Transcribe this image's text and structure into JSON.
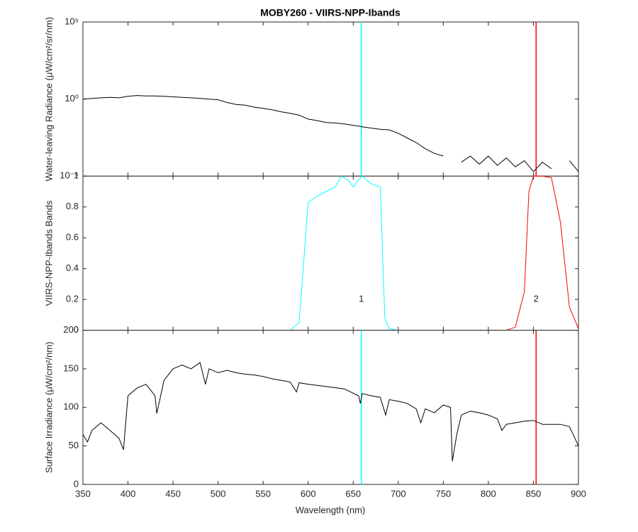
{
  "chart_data": [
    {
      "type": "line",
      "title": "MOBY260 - VIIRS-NPP-Ibands",
      "ylabel": "Water-leaving Radiance (μW/cm²/sr/nm)",
      "log_y": true,
      "xlim": [
        350,
        900
      ],
      "ylim": [
        1e-05,
        100000
      ],
      "yticks": [
        {
          "value": 1e-05,
          "label": "10⁻⁵"
        },
        {
          "value": 1,
          "label": "10⁰"
        },
        {
          "value": 100000,
          "label": "10⁵"
        }
      ],
      "series": [
        {
          "color": "#000000",
          "x": [
            350,
            360,
            370,
            380,
            390,
            400,
            410,
            420,
            430,
            440,
            450,
            460,
            470,
            480,
            490,
            500,
            510,
            520,
            530,
            540,
            550,
            560,
            570,
            580,
            590,
            600,
            610,
            620,
            630,
            640,
            650,
            660,
            670,
            680,
            690,
            700,
            710,
            720,
            730,
            740,
            750,
            760,
            770,
            780,
            790,
            800,
            810,
            820,
            830,
            840,
            850,
            860,
            870,
            880,
            890,
            900
          ],
          "values": [
            1.0,
            1.1,
            1.2,
            1.3,
            1.2,
            1.5,
            1.7,
            1.6,
            1.6,
            1.5,
            1.4,
            1.3,
            1.2,
            1.1,
            1.0,
            0.9,
            0.6,
            0.45,
            0.4,
            0.3,
            0.25,
            0.2,
            0.15,
            0.12,
            0.09,
            0.05,
            0.04,
            0.03,
            0.028,
            0.024,
            0.02,
            0.016,
            0.013,
            0.011,
            0.01,
            0.006,
            0.003,
            0.0015,
            0.0006,
            0.0003,
            0.0002,
            null,
            8e-05,
            0.0002,
            6e-05,
            0.0002,
            5e-05,
            0.00015,
            4e-05,
            0.0001,
            2e-05,
            8e-05,
            3e-05,
            null,
            0.0001,
            2e-05
          ]
        }
      ],
      "vlines": [
        {
          "x": 659,
          "color": "#00ffff"
        },
        {
          "x": 853,
          "color": "#ff0000"
        }
      ]
    },
    {
      "type": "line",
      "ylabel": "VIIRS-NPP-Ibands Bands",
      "xlim": [
        350,
        900
      ],
      "ylim": [
        0,
        1
      ],
      "yticks": [
        0,
        0.2,
        0.4,
        0.6,
        0.8,
        1
      ],
      "series": [
        {
          "color": "#00ffff",
          "x": [
            360,
            580,
            590,
            600,
            610,
            620,
            630,
            637,
            645,
            650,
            655,
            660,
            670,
            680,
            685,
            690,
            700,
            900
          ],
          "values": [
            0,
            0,
            0.05,
            0.83,
            0.87,
            0.9,
            0.93,
            1.0,
            0.97,
            0.93,
            0.97,
            1.0,
            0.95,
            0.93,
            0.08,
            0.01,
            0,
            0
          ]
        },
        {
          "color": "#ff0000",
          "x": [
            360,
            820,
            830,
            840,
            845,
            850,
            860,
            870,
            880,
            890,
            900
          ],
          "values": [
            0,
            0,
            0.02,
            0.25,
            0.9,
            1.0,
            1.0,
            0.99,
            0.7,
            0.15,
            0.01
          ]
        }
      ],
      "annotations": [
        {
          "text": "1",
          "x": 659,
          "y": 0.2
        },
        {
          "text": "2",
          "x": 853,
          "y": 0.2
        }
      ]
    },
    {
      "type": "line",
      "ylabel": "Surface Irradiance (μW/cm²/nm)",
      "xlabel": "Wavelength (nm)",
      "xlim": [
        350,
        900
      ],
      "xticks": [
        350,
        400,
        450,
        500,
        550,
        600,
        650,
        700,
        750,
        800,
        850,
        900
      ],
      "ylim": [
        0,
        200
      ],
      "yticks": [
        0,
        50,
        100,
        150,
        200
      ],
      "series": [
        {
          "color": "#000000",
          "x": [
            350,
            355,
            360,
            370,
            380,
            390,
            395,
            400,
            410,
            420,
            430,
            432,
            440,
            450,
            460,
            470,
            480,
            486,
            490,
            500,
            510,
            520,
            530,
            540,
            550,
            560,
            570,
            580,
            587,
            590,
            600,
            620,
            640,
            656,
            658,
            660,
            670,
            680,
            686,
            690,
            700,
            710,
            720,
            725,
            730,
            740,
            750,
            758,
            760,
            765,
            770,
            780,
            790,
            800,
            810,
            815,
            820,
            830,
            840,
            850,
            860,
            870,
            880,
            890,
            900
          ],
          "values": [
            65,
            55,
            70,
            80,
            70,
            60,
            45,
            115,
            125,
            130,
            115,
            92,
            135,
            150,
            155,
            150,
            158,
            130,
            150,
            145,
            148,
            145,
            143,
            142,
            140,
            137,
            135,
            133,
            120,
            132,
            130,
            127,
            124,
            115,
            105,
            118,
            115,
            113,
            90,
            110,
            108,
            105,
            98,
            80,
            98,
            93,
            103,
            100,
            30,
            65,
            90,
            95,
            93,
            90,
            85,
            70,
            78,
            80,
            82,
            83,
            78,
            78,
            78,
            75,
            50
          ]
        }
      ],
      "vlines": [
        {
          "x": 659,
          "color": "#00ffff"
        },
        {
          "x": 853,
          "color": "#ff0000"
        }
      ]
    }
  ]
}
